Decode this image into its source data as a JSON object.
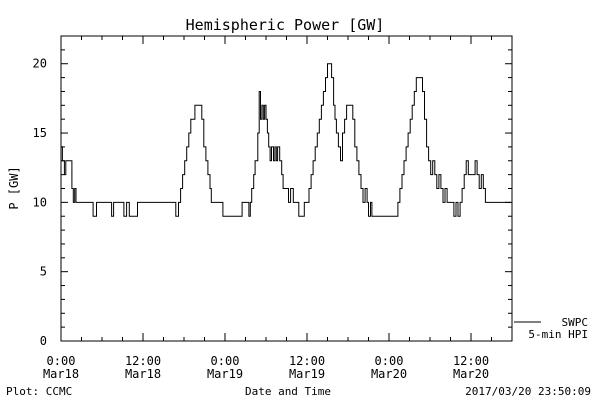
{
  "chart_data": {
    "type": "line",
    "title": "Hemispheric Power [GW]",
    "xlabel": "Date and Time",
    "ylabel": "P [GW]",
    "ylim": [
      0,
      22
    ],
    "xlim": [
      0,
      66
    ],
    "x_unit": "hours since 2017-03-18 00:00",
    "yticks": [
      0,
      5,
      10,
      15,
      20
    ],
    "xticks": [
      {
        "value": 0,
        "line1": "0:00",
        "line2": "Mar18"
      },
      {
        "value": 12,
        "line1": "12:00",
        "line2": "Mar18"
      },
      {
        "value": 24,
        "line1": "0:00",
        "line2": "Mar19"
      },
      {
        "value": 36,
        "line1": "12:00",
        "line2": "Mar19"
      },
      {
        "value": 48,
        "line1": "0:00",
        "line2": "Mar20"
      },
      {
        "value": 60,
        "line1": "12:00",
        "line2": "Mar20"
      }
    ],
    "grid": false,
    "legend": {
      "position": "bottom-right",
      "entries": [
        "SWPC",
        "5-min HPI"
      ]
    },
    "series": [
      {
        "name": "SWPC 5-min HPI",
        "points": [
          [
            0,
            14
          ],
          [
            0.2,
            13
          ],
          [
            0.5,
            12
          ],
          [
            0.7,
            13
          ],
          [
            1.4,
            13
          ],
          [
            1.6,
            11
          ],
          [
            1.8,
            10
          ],
          [
            2.0,
            11
          ],
          [
            2.2,
            10
          ],
          [
            4.5,
            10
          ],
          [
            4.7,
            9
          ],
          [
            5.2,
            10
          ],
          [
            7.2,
            10
          ],
          [
            7.4,
            9
          ],
          [
            7.7,
            10
          ],
          [
            9.0,
            10
          ],
          [
            9.2,
            9
          ],
          [
            9.6,
            10
          ],
          [
            10.0,
            9
          ],
          [
            11.0,
            9
          ],
          [
            11.2,
            10
          ],
          [
            16.5,
            10
          ],
          [
            16.8,
            9
          ],
          [
            17.2,
            10
          ],
          [
            17.5,
            11
          ],
          [
            17.8,
            12
          ],
          [
            18.1,
            13
          ],
          [
            18.4,
            14
          ],
          [
            18.7,
            15
          ],
          [
            19.0,
            16
          ],
          [
            19.3,
            16
          ],
          [
            19.6,
            17
          ],
          [
            20.3,
            17
          ],
          [
            20.6,
            16
          ],
          [
            20.9,
            14
          ],
          [
            21.2,
            13
          ],
          [
            21.5,
            12
          ],
          [
            21.8,
            11
          ],
          [
            22.0,
            10
          ],
          [
            23.5,
            10
          ],
          [
            23.7,
            9
          ],
          [
            26.3,
            9
          ],
          [
            26.5,
            10
          ],
          [
            27.3,
            10
          ],
          [
            27.5,
            9
          ],
          [
            27.7,
            10
          ],
          [
            27.9,
            11
          ],
          [
            28.2,
            12
          ],
          [
            28.4,
            13
          ],
          [
            28.8,
            15
          ],
          [
            29.0,
            18
          ],
          [
            29.2,
            16
          ],
          [
            29.4,
            17
          ],
          [
            29.6,
            16
          ],
          [
            29.8,
            17
          ],
          [
            30.0,
            16
          ],
          [
            30.2,
            15
          ],
          [
            30.4,
            14
          ],
          [
            30.6,
            13
          ],
          [
            30.8,
            14
          ],
          [
            31.1,
            13
          ],
          [
            31.3,
            14
          ],
          [
            31.5,
            13
          ],
          [
            31.7,
            14
          ],
          [
            32.0,
            13
          ],
          [
            32.3,
            12
          ],
          [
            32.5,
            11
          ],
          [
            33.0,
            11
          ],
          [
            33.3,
            10
          ],
          [
            33.6,
            11
          ],
          [
            34.0,
            10
          ],
          [
            34.6,
            10
          ],
          [
            34.8,
            9
          ],
          [
            35.4,
            9
          ],
          [
            35.6,
            10
          ],
          [
            36.0,
            10
          ],
          [
            36.3,
            11
          ],
          [
            36.6,
            12
          ],
          [
            36.9,
            13
          ],
          [
            37.2,
            14
          ],
          [
            37.5,
            15
          ],
          [
            37.8,
            16
          ],
          [
            38.1,
            17
          ],
          [
            38.4,
            18
          ],
          [
            38.7,
            19
          ],
          [
            39.0,
            20
          ],
          [
            39.3,
            20
          ],
          [
            39.6,
            19
          ],
          [
            39.9,
            17
          ],
          [
            40.1,
            16
          ],
          [
            40.3,
            15
          ],
          [
            40.6,
            14
          ],
          [
            40.9,
            13
          ],
          [
            41.2,
            15
          ],
          [
            41.5,
            16
          ],
          [
            41.8,
            17
          ],
          [
            42.4,
            17
          ],
          [
            42.7,
            16
          ],
          [
            43.0,
            14
          ],
          [
            43.3,
            13
          ],
          [
            43.6,
            12
          ],
          [
            43.9,
            11
          ],
          [
            44.2,
            10
          ],
          [
            44.5,
            11
          ],
          [
            44.8,
            10
          ],
          [
            45.0,
            9
          ],
          [
            45.3,
            10
          ],
          [
            45.5,
            9
          ],
          [
            49.0,
            9
          ],
          [
            49.3,
            10
          ],
          [
            49.6,
            11
          ],
          [
            49.9,
            12
          ],
          [
            50.2,
            13
          ],
          [
            50.5,
            14
          ],
          [
            50.8,
            15
          ],
          [
            51.1,
            16
          ],
          [
            51.4,
            17
          ],
          [
            51.7,
            18
          ],
          [
            52.0,
            19
          ],
          [
            52.6,
            19
          ],
          [
            52.9,
            18
          ],
          [
            53.2,
            16
          ],
          [
            53.5,
            14
          ],
          [
            53.8,
            13
          ],
          [
            54.1,
            12
          ],
          [
            54.4,
            13
          ],
          [
            54.7,
            12
          ],
          [
            55.0,
            11
          ],
          [
            55.3,
            12
          ],
          [
            55.6,
            11
          ],
          [
            55.9,
            10
          ],
          [
            56.2,
            11
          ],
          [
            56.5,
            10
          ],
          [
            57.2,
            10
          ],
          [
            57.5,
            9
          ],
          [
            57.8,
            10
          ],
          [
            58.1,
            9
          ],
          [
            58.4,
            10
          ],
          [
            58.7,
            11
          ],
          [
            59.0,
            12
          ],
          [
            59.3,
            13
          ],
          [
            59.6,
            12
          ],
          [
            60.3,
            12
          ],
          [
            60.6,
            13
          ],
          [
            60.9,
            12
          ],
          [
            61.2,
            11
          ],
          [
            61.5,
            12
          ],
          [
            61.8,
            11
          ],
          [
            62.1,
            10
          ],
          [
            65.8,
            10
          ]
        ]
      }
    ]
  },
  "footer": {
    "left": "Plot: CCMC",
    "center": "Date and Time",
    "right": "2017/03/20 23:50:09"
  }
}
